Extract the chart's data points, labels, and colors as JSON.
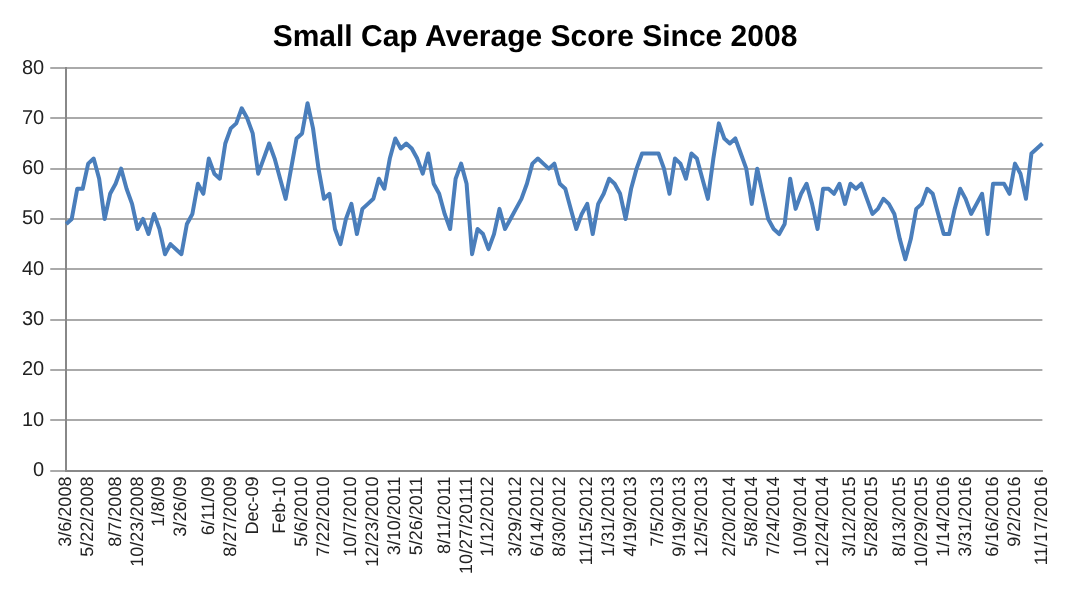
{
  "chart_data": {
    "type": "line",
    "title": "Small Cap Average Score Since 2008",
    "categories": [
      "3/6/2008",
      null,
      null,
      null,
      "5/22/2008",
      null,
      null,
      null,
      null,
      "8/7/2008",
      null,
      null,
      null,
      "10/23/2008",
      null,
      null,
      null,
      "1/8/09",
      null,
      null,
      null,
      "3/26/09",
      null,
      null,
      null,
      null,
      "6/11/09",
      null,
      null,
      null,
      "8/27/2009",
      null,
      null,
      null,
      "Dec-09",
      null,
      null,
      null,
      null,
      "Feb-10",
      null,
      null,
      null,
      "5/6/2010",
      null,
      null,
      null,
      "7/22/2010",
      null,
      null,
      null,
      null,
      "10/7/2010",
      null,
      null,
      null,
      "12/23/2010",
      null,
      null,
      null,
      "3/10/2011",
      null,
      null,
      null,
      "5/26/2011",
      null,
      null,
      null,
      null,
      "8/11/2011",
      null,
      null,
      null,
      "10/27/20111",
      null,
      null,
      null,
      "1/12/2012",
      null,
      null,
      null,
      null,
      "3/29/2012",
      null,
      null,
      null,
      "6/14/2012",
      null,
      null,
      null,
      "8/30/2012",
      null,
      null,
      null,
      null,
      "11/15/2012",
      null,
      null,
      null,
      "1/31/2013",
      null,
      null,
      null,
      "4/19/2013",
      null,
      null,
      null,
      null,
      "7/5/2013",
      null,
      null,
      null,
      "9/19/2013",
      null,
      null,
      null,
      "12/5/2013",
      null,
      null,
      null,
      null,
      "2/20/2014",
      null,
      null,
      null,
      "5/8/2014",
      null,
      null,
      null,
      "7/24/2014",
      null,
      null,
      null,
      null,
      "10/9/2014",
      null,
      null,
      null,
      "12/24/2014",
      null,
      null,
      null,
      null,
      "3/12/2015",
      null,
      null,
      null,
      "5/28/2015",
      null,
      null,
      null,
      null,
      "8/13/2015",
      null,
      null,
      null,
      "10/29/2015",
      null,
      null,
      null,
      "1/14/2016",
      null,
      null,
      null,
      "3/31/2016",
      null,
      null,
      null,
      null,
      "6/16/2016",
      null,
      null,
      null,
      "9/2/2016",
      null,
      null,
      null,
      null,
      "11/17/2016"
    ],
    "series": [
      {
        "color": "#4a7ebb",
        "values": [
          49,
          50,
          56,
          56,
          61,
          62,
          58,
          50,
          55,
          57,
          60,
          56,
          53,
          48,
          50,
          47,
          51,
          48,
          43,
          45,
          44,
          43,
          49,
          51,
          57,
          55,
          62,
          59,
          58,
          65,
          68,
          69,
          72,
          70,
          67,
          59,
          62,
          65,
          62,
          58,
          54,
          60,
          66,
          67,
          73,
          68,
          60,
          54,
          55,
          48,
          45,
          50,
          53,
          47,
          52,
          53,
          54,
          58,
          56,
          62,
          66,
          64,
          65,
          64,
          62,
          59,
          63,
          57,
          55,
          51,
          48,
          58,
          61,
          57,
          43,
          48,
          47,
          44,
          47,
          52,
          48,
          50,
          52,
          54,
          57,
          61,
          62,
          61,
          60,
          61,
          57,
          56,
          52,
          48,
          51,
          53,
          47,
          53,
          55,
          58,
          57,
          55,
          50,
          56,
          60,
          63,
          63,
          63,
          63,
          60,
          55,
          62,
          61,
          58,
          63,
          62,
          58,
          54,
          62,
          69,
          66,
          65,
          66,
          63,
          60,
          53,
          60,
          55,
          50,
          48,
          47,
          49,
          58,
          52,
          55,
          57,
          53,
          48,
          56,
          56,
          55,
          57,
          53,
          57,
          56,
          57,
          54,
          51,
          52,
          54,
          53,
          51,
          46,
          42,
          46,
          52,
          53,
          56,
          55,
          51,
          47,
          47,
          52,
          56,
          54,
          51,
          53,
          55,
          47,
          57,
          57,
          57,
          55,
          61,
          59,
          54,
          63,
          64,
          65
        ]
      }
    ],
    "ylim": [
      0,
      80
    ],
    "yticks": [
      0,
      10,
      20,
      30,
      40,
      50,
      60,
      70,
      80
    ],
    "grid": "y",
    "legend": false,
    "marker": "none",
    "line_style": "solid"
  }
}
